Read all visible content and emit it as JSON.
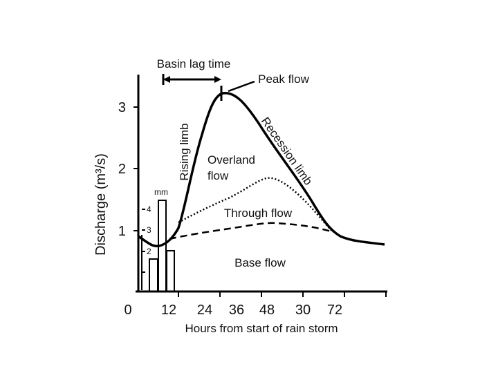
{
  "y_axis_label": "Discharge (m³/s)",
  "x_axis_label": "Hours from start of rain storm",
  "y_ticks": [
    "1",
    "2",
    "3"
  ],
  "x_ticks": [
    "0",
    "12",
    "24",
    "36",
    "48",
    "30",
    "72"
  ],
  "rain_axis_label": "mm",
  "rain_ticks": [
    "4",
    "3",
    "2"
  ],
  "annotations": {
    "basin_lag_time": "Basin lag time",
    "peak_flow": "Peak flow",
    "rising_limb": "Rising limb",
    "recession_limb": "Recession limb",
    "overland_flow": [
      "Overland",
      "flow"
    ],
    "through_flow": "Through flow",
    "base_flow": "Base flow"
  }
}
